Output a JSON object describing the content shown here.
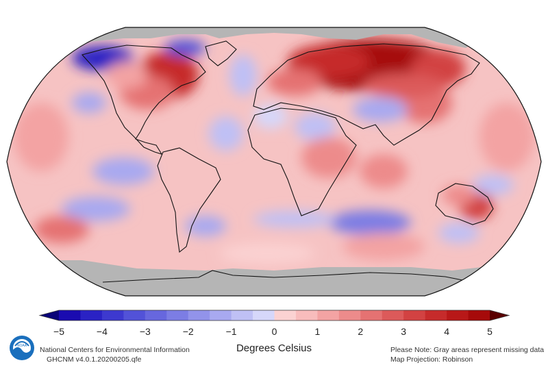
{
  "map": {
    "projection_note": "Map Projection: Robinson",
    "missing_note": "Please Note: Gray areas represent missing data",
    "missing_color": "#b5b5b5"
  },
  "legend": {
    "units_label": "Degrees Celsius",
    "tick_labels": [
      "−5",
      "−4",
      "−3",
      "−2",
      "−1",
      "0",
      "1",
      "2",
      "3",
      "4",
      "5"
    ],
    "min": -5,
    "max": 5,
    "step": 0.5,
    "colors": [
      "#1a0bb0",
      "#2a22c4",
      "#3d39cf",
      "#5252d8",
      "#6767de",
      "#7c7de4",
      "#9293ea",
      "#a8a9f0",
      "#bfc0f5",
      "#d6d7fa",
      "#fbd2d2",
      "#f8bcbc",
      "#f3a3a3",
      "#ed8b8b",
      "#e57272",
      "#dc5a5a",
      "#d24242",
      "#c62b2b",
      "#b81818",
      "#a60a0a"
    ],
    "under_color": "#0a0478",
    "over_color": "#5a0000"
  },
  "credits": {
    "org": "National Centers for Environmental Information",
    "dataset": "GHCNM v4.0.1.20200205.qfe",
    "logo_text": "NOAA"
  }
}
